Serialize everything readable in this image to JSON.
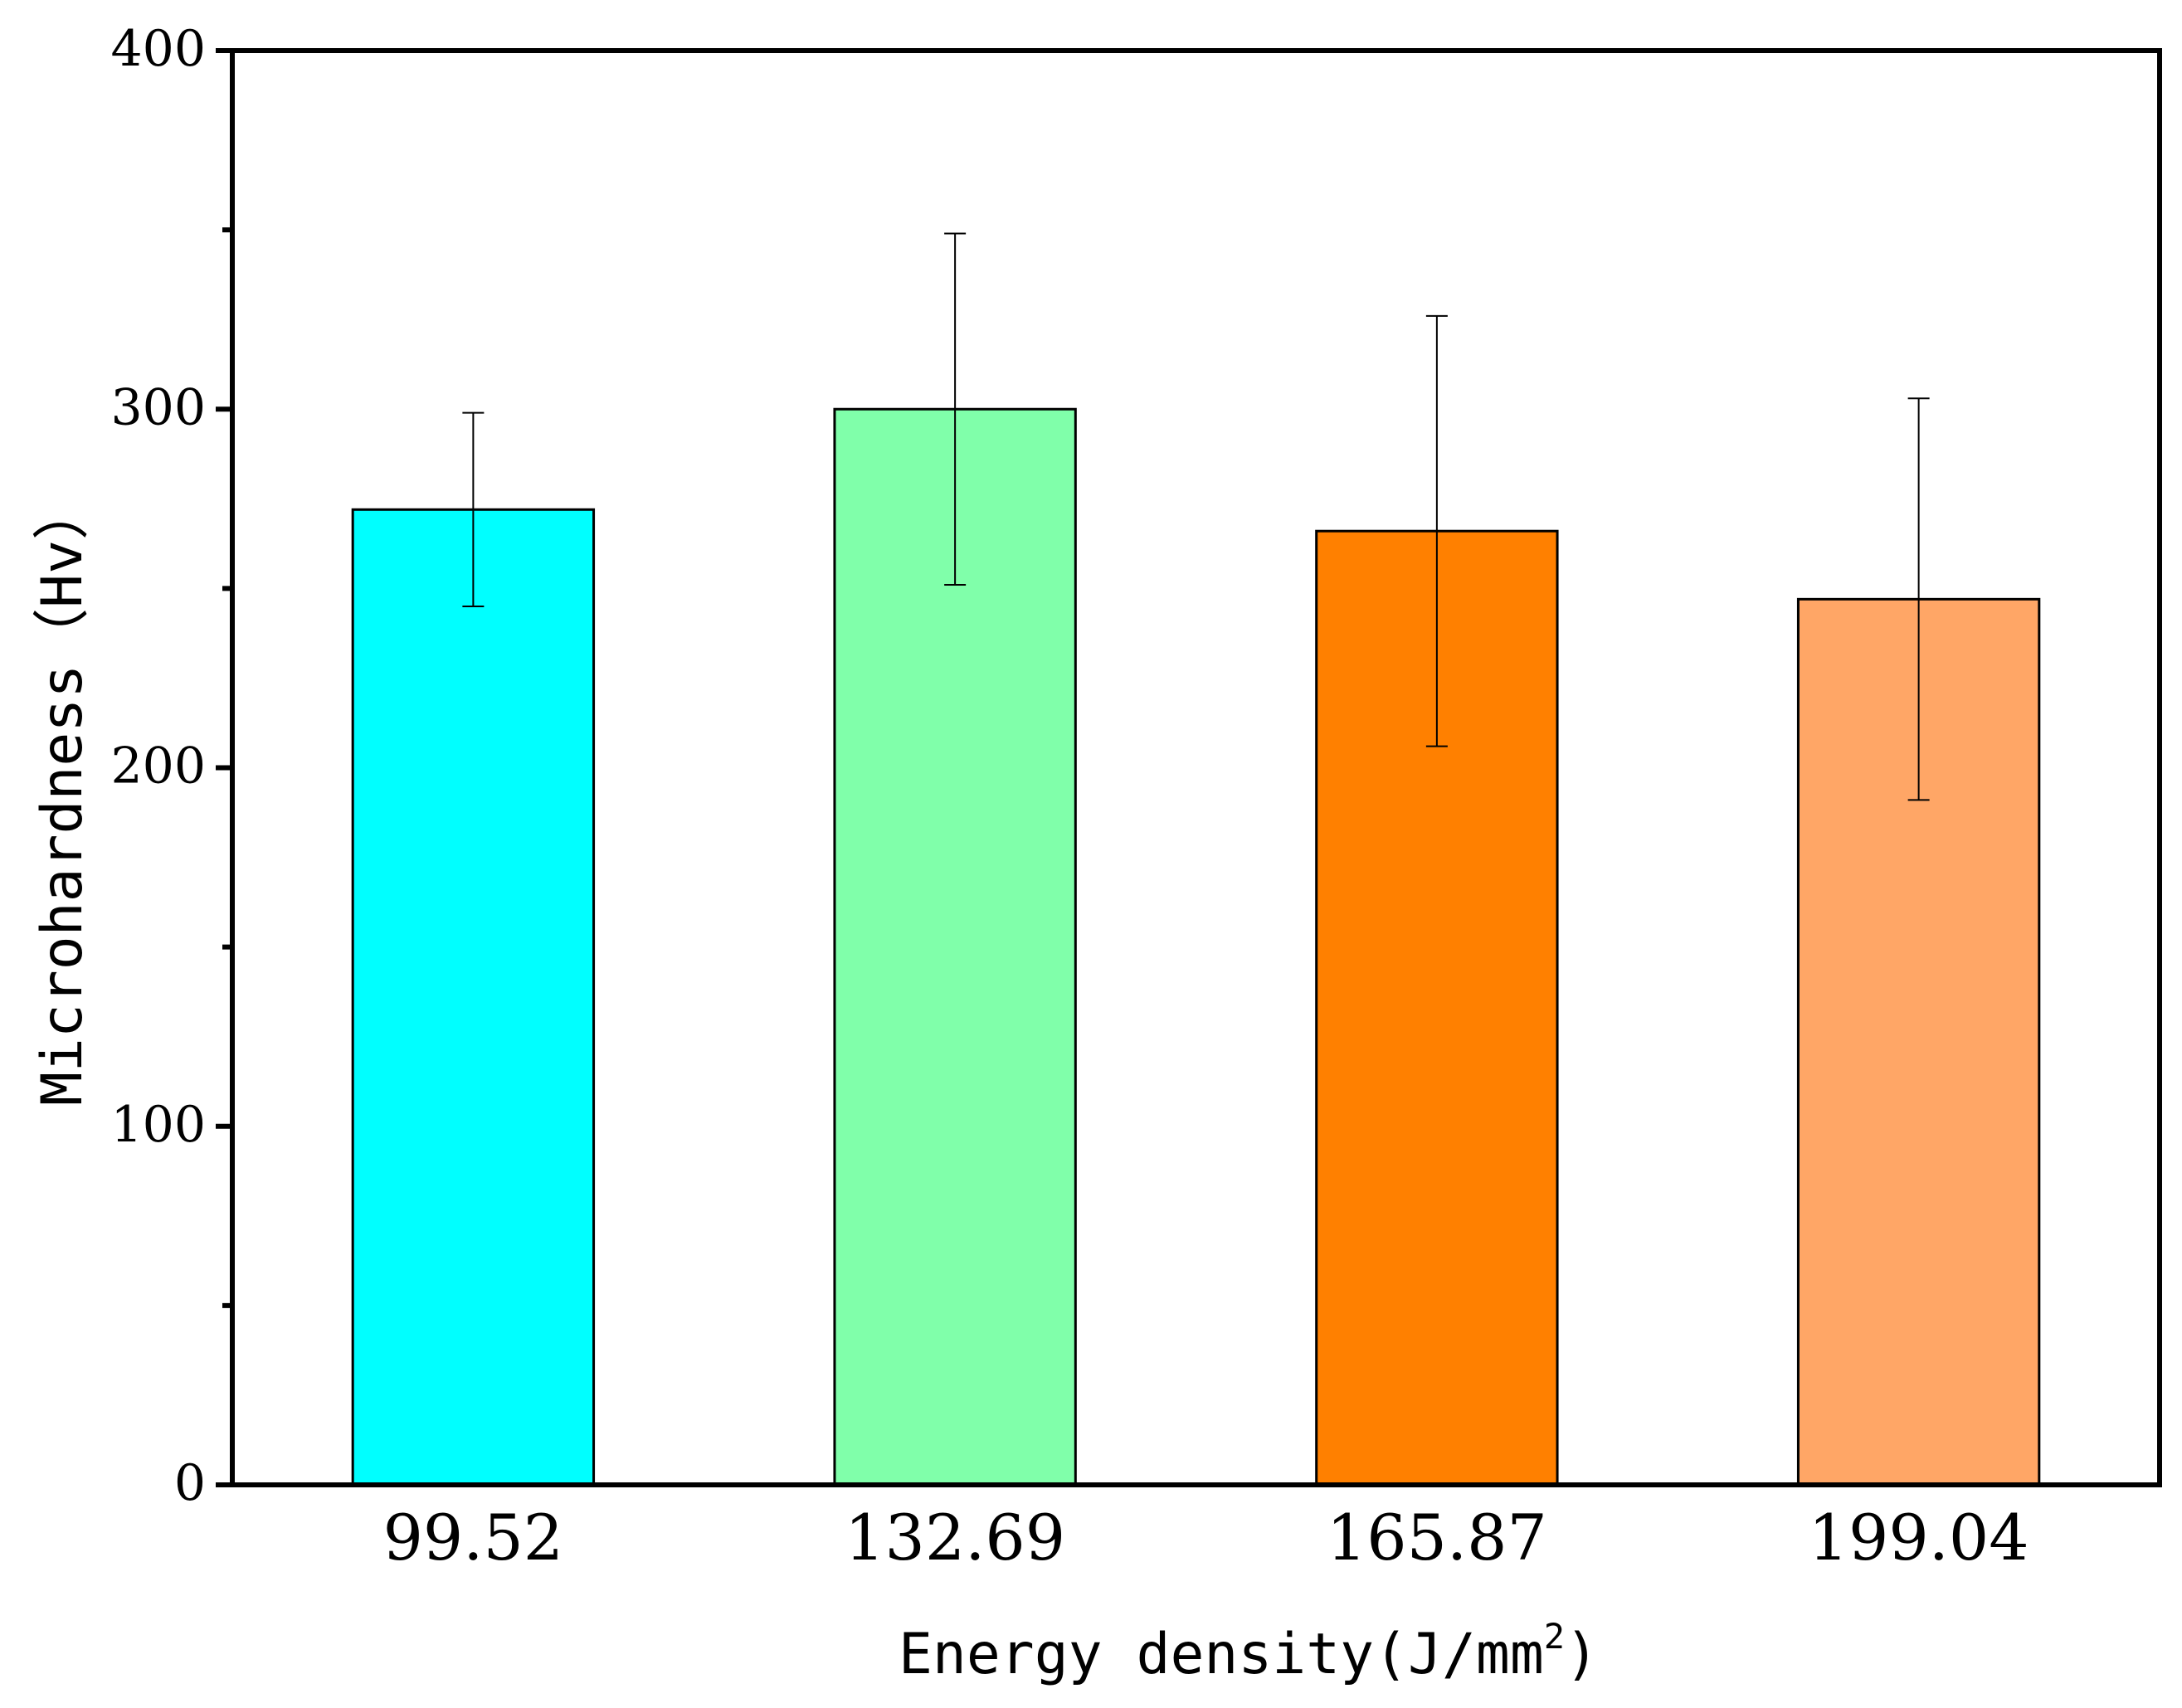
{
  "chart_data": {
    "type": "bar",
    "title": "",
    "xlabel": "Energy density(J/mm",
    "xlabel_superscript": "2",
    "xlabel_suffix": ")",
    "ylabel": "Microhardness（Hv）",
    "categories": [
      "99.52",
      "132.69",
      "165.87",
      "199.04"
    ],
    "values": [
      272,
      300,
      266,
      247
    ],
    "errors": [
      27,
      49,
      60,
      56
    ],
    "colors": [
      "#00FFFF",
      "#80FFAA",
      "#FF8000",
      "#FFA666"
    ],
    "ylim": [
      0,
      400
    ],
    "yticks": [
      "0",
      "100",
      "200",
      "300",
      "400"
    ],
    "ytick_values": [
      0,
      100,
      200,
      300,
      400
    ],
    "y_minor_ticks": [
      50,
      150,
      250,
      350
    ],
    "grid": false,
    "legend": "none"
  }
}
